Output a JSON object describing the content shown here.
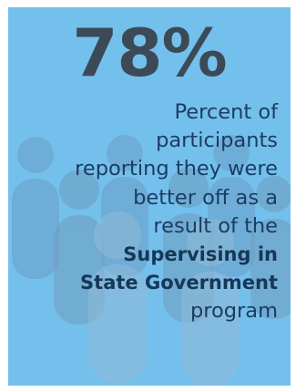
{
  "stat": {
    "value": "78%"
  },
  "description": {
    "lines": [
      "Percent of",
      "participants",
      "reporting they were",
      "better off as a",
      "result of the"
    ],
    "program_lines": [
      "Supervising in",
      "State Government"
    ],
    "last_line": "program"
  },
  "colors": {
    "background": "#74c0ed",
    "stat_text": "#3c4a57",
    "body_text": "#1c3c62",
    "people_silhouettes": "#5a8cb5"
  },
  "icons": {
    "background_graphic": "people-group-icon"
  }
}
